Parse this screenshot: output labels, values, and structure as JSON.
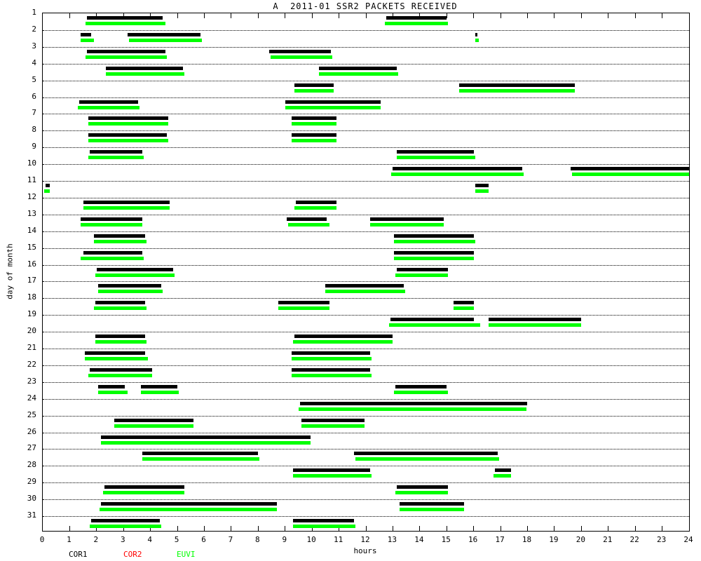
{
  "chart_data": {
    "type": "bar",
    "subtype": "horizontal interval (gantt-style) packet-receipt timeline",
    "title": "A  2011-01 SSR2 PACKETS RECEIVED",
    "xlabel": "hours",
    "ylabel": "day of month",
    "xlim": [
      0,
      24
    ],
    "x_ticks": [
      0,
      1,
      2,
      3,
      4,
      5,
      6,
      7,
      8,
      9,
      10,
      11,
      12,
      13,
      14,
      15,
      16,
      17,
      18,
      19,
      20,
      21,
      22,
      23,
      24
    ],
    "y_categories": [
      1,
      2,
      3,
      4,
      5,
      6,
      7,
      8,
      9,
      10,
      11,
      12,
      13,
      14,
      15,
      16,
      17,
      18,
      19,
      20,
      21,
      22,
      23,
      24,
      25,
      26,
      27,
      28,
      29,
      30,
      31
    ],
    "grid": "horizontal dotted line per day, solid frame, inward hour ticks top and bottom",
    "legend_position": "below plot, bottom-left",
    "background": "#ffffff",
    "notes": "Each day has an upper black COR1 bar and a lower green EUVI bar; no red COR2 bars are visible in the plot. Interval units are hours of day.",
    "series": [
      {
        "name": "COR1",
        "color": "#000000",
        "row_offset": "upper",
        "intervals_by_day": [
          [
            [
              1.65,
              4.45
            ],
            [
              12.75,
              15.0
            ]
          ],
          [
            [
              1.4,
              1.8
            ],
            [
              3.15,
              5.85
            ],
            [
              16.05,
              16.15
            ]
          ],
          [
            [
              1.65,
              4.55
            ],
            [
              8.4,
              10.7
            ]
          ],
          [
            [
              2.35,
              5.2
            ],
            [
              10.25,
              13.15
            ]
          ],
          [
            [
              9.35,
              10.8
            ],
            [
              15.45,
              19.75
            ]
          ],
          [
            [
              1.35,
              3.55
            ],
            [
              9.0,
              12.55
            ]
          ],
          [
            [
              1.7,
              4.65
            ],
            [
              9.25,
              10.9
            ]
          ],
          [
            [
              1.7,
              4.6
            ],
            [
              9.25,
              10.9
            ]
          ],
          [
            [
              1.75,
              3.7
            ],
            [
              13.15,
              16.0
            ]
          ],
          [
            [
              13.0,
              17.8
            ],
            [
              19.6,
              24.0
            ]
          ],
          [
            [
              0.1,
              0.25
            ],
            [
              16.05,
              16.55
            ]
          ],
          [
            [
              1.5,
              4.7
            ],
            [
              9.4,
              10.9
            ]
          ],
          [
            [
              1.4,
              3.7
            ],
            [
              9.05,
              10.55
            ],
            [
              12.15,
              14.9
            ]
          ],
          [
            [
              1.9,
              3.8
            ],
            [
              13.05,
              16.0
            ]
          ],
          [
            [
              1.5,
              3.7
            ],
            [
              13.05,
              16.0
            ]
          ],
          [
            [
              2.0,
              4.85
            ],
            [
              13.15,
              15.05
            ]
          ],
          [
            [
              2.05,
              4.4
            ],
            [
              10.5,
              13.4
            ]
          ],
          [
            [
              1.95,
              3.8
            ],
            [
              8.75,
              10.65
            ],
            [
              15.25,
              16.0
            ]
          ],
          [
            [
              12.9,
              16.0
            ],
            [
              16.55,
              20.0
            ]
          ],
          [
            [
              1.95,
              3.8
            ],
            [
              9.35,
              13.0
            ]
          ],
          [
            [
              1.55,
              3.8
            ],
            [
              9.25,
              12.15
            ]
          ],
          [
            [
              1.75,
              4.05
            ],
            [
              9.25,
              12.15
            ]
          ],
          [
            [
              2.05,
              3.05
            ],
            [
              3.65,
              5.0
            ],
            [
              13.1,
              15.0
            ]
          ],
          [
            [
              9.55,
              18.0
            ]
          ],
          [
            [
              2.65,
              5.6
            ],
            [
              9.6,
              11.95
            ]
          ],
          [
            [
              2.15,
              9.95
            ]
          ],
          [
            [
              3.7,
              8.0
            ],
            [
              11.55,
              16.9
            ]
          ],
          [
            [
              9.3,
              12.15
            ],
            [
              16.8,
              17.4
            ]
          ],
          [
            [
              2.3,
              5.25
            ],
            [
              13.15,
              15.05
            ]
          ],
          [
            [
              2.15,
              8.7
            ],
            [
              13.25,
              15.65
            ]
          ],
          [
            [
              1.8,
              4.35
            ],
            [
              9.3,
              11.55
            ]
          ]
        ]
      },
      {
        "name": "COR2",
        "color": "#ff0000",
        "row_offset": "middle",
        "intervals_by_day": [
          [],
          [],
          [],
          [],
          [],
          [],
          [],
          [],
          [],
          [],
          [],
          [],
          [],
          [],
          [],
          [],
          [],
          [],
          [],
          [],
          [],
          [],
          [],
          [],
          [],
          [],
          [],
          [],
          [],
          [],
          []
        ]
      },
      {
        "name": "EUVI",
        "color": "#00ff00",
        "row_offset": "lower",
        "intervals_by_day": [
          [
            [
              1.6,
              4.55
            ],
            [
              12.7,
              15.05
            ]
          ],
          [
            [
              1.4,
              1.9
            ],
            [
              3.2,
              5.9
            ],
            [
              16.05,
              16.2
            ]
          ],
          [
            [
              1.6,
              4.6
            ],
            [
              8.45,
              10.75
            ]
          ],
          [
            [
              2.35,
              5.25
            ],
            [
              10.25,
              13.2
            ]
          ],
          [
            [
              9.35,
              10.8
            ],
            [
              15.45,
              19.75
            ]
          ],
          [
            [
              1.3,
              3.6
            ],
            [
              9.0,
              12.55
            ]
          ],
          [
            [
              1.7,
              4.65
            ],
            [
              9.25,
              10.9
            ]
          ],
          [
            [
              1.7,
              4.65
            ],
            [
              9.25,
              10.9
            ]
          ],
          [
            [
              1.7,
              3.75
            ],
            [
              13.15,
              16.05
            ]
          ],
          [
            [
              12.95,
              17.85
            ],
            [
              19.65,
              24.0
            ]
          ],
          [
            [
              0.05,
              0.25
            ],
            [
              16.05,
              16.55
            ]
          ],
          [
            [
              1.5,
              4.7
            ],
            [
              9.35,
              10.9
            ]
          ],
          [
            [
              1.4,
              3.7
            ],
            [
              9.1,
              10.65
            ],
            [
              12.15,
              14.9
            ]
          ],
          [
            [
              1.9,
              3.85
            ],
            [
              13.05,
              16.05
            ]
          ],
          [
            [
              1.4,
              3.75
            ],
            [
              13.05,
              16.0
            ]
          ],
          [
            [
              1.95,
              4.9
            ],
            [
              13.1,
              15.05
            ]
          ],
          [
            [
              2.05,
              4.45
            ],
            [
              10.5,
              13.45
            ]
          ],
          [
            [
              1.9,
              3.85
            ],
            [
              8.75,
              10.65
            ],
            [
              15.25,
              16.0
            ]
          ],
          [
            [
              12.85,
              16.25
            ],
            [
              16.55,
              20.0
            ]
          ],
          [
            [
              1.95,
              3.85
            ],
            [
              9.3,
              13.0
            ]
          ],
          [
            [
              1.55,
              3.9
            ],
            [
              9.25,
              12.2
            ]
          ],
          [
            [
              1.7,
              4.05
            ],
            [
              9.25,
              12.2
            ]
          ],
          [
            [
              2.05,
              3.15
            ],
            [
              3.65,
              5.05
            ],
            [
              13.05,
              15.05
            ]
          ],
          [
            [
              9.5,
              17.95
            ]
          ],
          [
            [
              2.65,
              5.6
            ],
            [
              9.6,
              11.95
            ]
          ],
          [
            [
              2.15,
              9.95
            ]
          ],
          [
            [
              3.7,
              8.05
            ],
            [
              11.6,
              16.95
            ]
          ],
          [
            [
              9.3,
              12.2
            ],
            [
              16.75,
              17.4
            ]
          ],
          [
            [
              2.25,
              5.25
            ],
            [
              13.1,
              15.05
            ]
          ],
          [
            [
              2.1,
              8.7
            ],
            [
              13.25,
              15.65
            ]
          ],
          [
            [
              1.75,
              4.4
            ],
            [
              9.3,
              11.6
            ]
          ]
        ]
      }
    ]
  }
}
